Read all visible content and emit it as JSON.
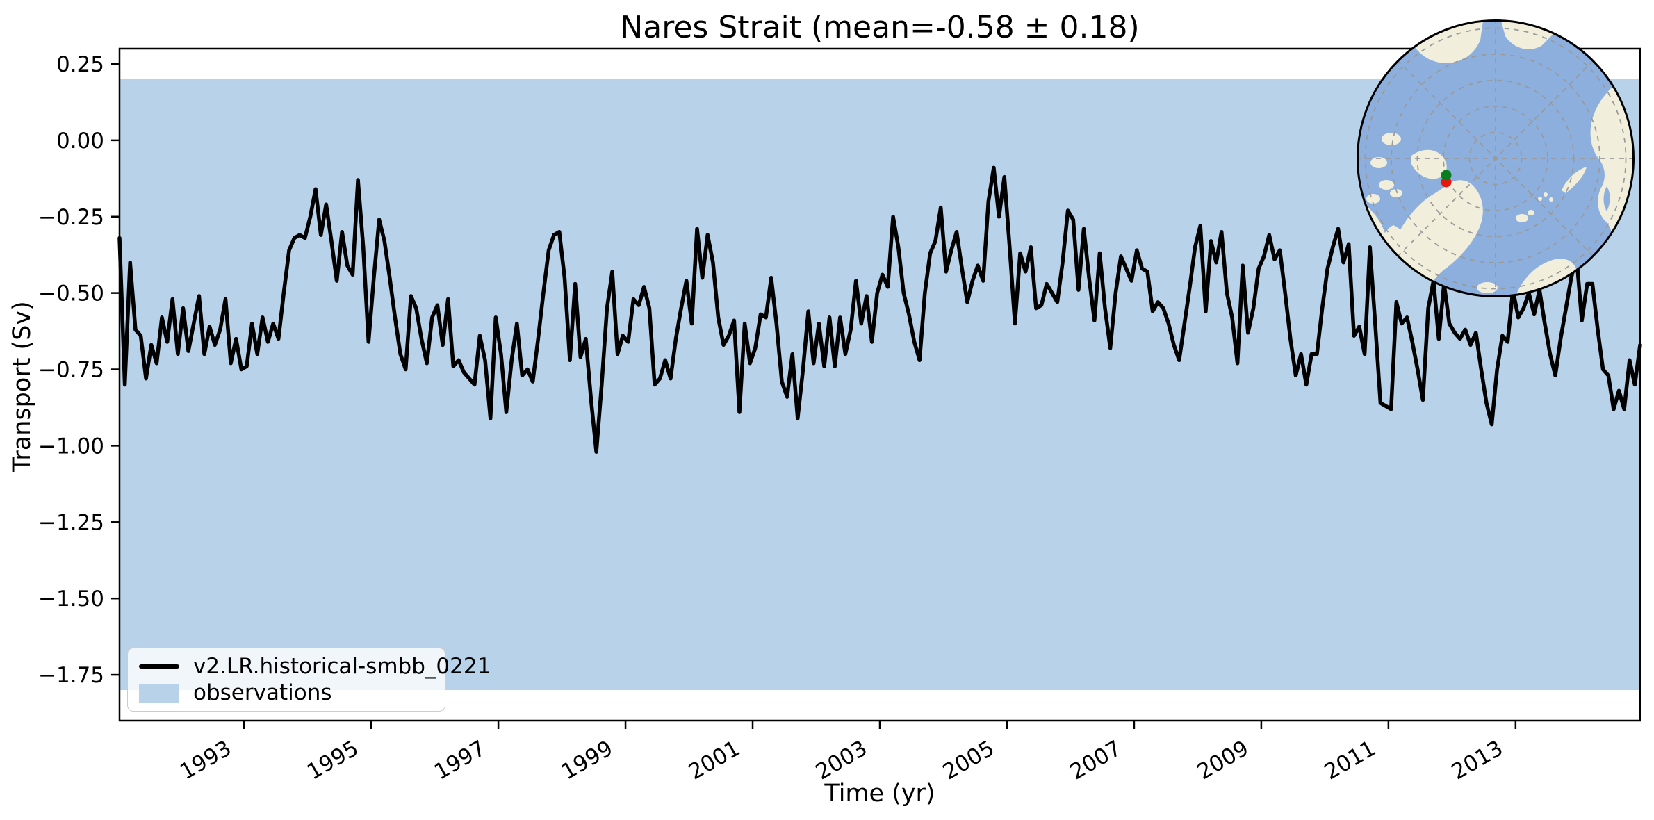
{
  "chart_data": {
    "type": "line",
    "title": "Nares Strait (mean=-0.58 ± 0.18)",
    "xlabel": "Time (yr)",
    "ylabel": "Transport (Sv)",
    "xlim": [
      1991.0417,
      2014.9583
    ],
    "ylim": [
      -1.9,
      0.3
    ],
    "grid": false,
    "legend_position": "lower-left",
    "xticks": [
      {
        "value": 1993,
        "label": "1993"
      },
      {
        "value": 1995,
        "label": "1995"
      },
      {
        "value": 1997,
        "label": "1997"
      },
      {
        "value": 1999,
        "label": "1999"
      },
      {
        "value": 2001,
        "label": "2001"
      },
      {
        "value": 2003,
        "label": "2003"
      },
      {
        "value": 2005,
        "label": "2005"
      },
      {
        "value": 2007,
        "label": "2007"
      },
      {
        "value": 2009,
        "label": "2009"
      },
      {
        "value": 2011,
        "label": "2011"
      },
      {
        "value": 2013,
        "label": "2013"
      }
    ],
    "yticks": [
      {
        "value": 0.25,
        "label": "0.25"
      },
      {
        "value": 0.0,
        "label": "0.00"
      },
      {
        "value": -0.25,
        "label": "−0.25"
      },
      {
        "value": -0.5,
        "label": "−0.50"
      },
      {
        "value": -0.75,
        "label": "−0.75"
      },
      {
        "value": -1.0,
        "label": "−1.00"
      },
      {
        "value": -1.25,
        "label": "−1.25"
      },
      {
        "value": -1.5,
        "label": "−1.50"
      },
      {
        "value": -1.75,
        "label": "−1.75"
      }
    ],
    "band": {
      "name": "observations",
      "color": "#b8d3e9",
      "y_min": -1.8,
      "y_max": 0.2,
      "mean": -0.8,
      "uncertainty": 1.0
    },
    "series": [
      {
        "name": "v2.LR.historical-smbb_0221",
        "color": "#000000",
        "line_width": 5.5,
        "start_year": 1991,
        "interval_months": 1,
        "mean": -0.58,
        "std": 0.18,
        "values": [
          -0.32,
          -0.8,
          -0.4,
          -0.62,
          -0.64,
          -0.78,
          -0.67,
          -0.73,
          -0.58,
          -0.66,
          -0.52,
          -0.7,
          -0.55,
          -0.69,
          -0.6,
          -0.51,
          -0.7,
          -0.61,
          -0.67,
          -0.62,
          -0.52,
          -0.73,
          -0.65,
          -0.75,
          -0.74,
          -0.6,
          -0.7,
          -0.58,
          -0.66,
          -0.6,
          -0.65,
          -0.5,
          -0.36,
          -0.32,
          -0.31,
          -0.32,
          -0.25,
          -0.16,
          -0.31,
          -0.21,
          -0.33,
          -0.46,
          -0.3,
          -0.41,
          -0.44,
          -0.13,
          -0.35,
          -0.66,
          -0.45,
          -0.26,
          -0.33,
          -0.45,
          -0.58,
          -0.7,
          -0.75,
          -0.51,
          -0.55,
          -0.65,
          -0.73,
          -0.58,
          -0.54,
          -0.67,
          -0.52,
          -0.74,
          -0.72,
          -0.76,
          -0.78,
          -0.8,
          -0.64,
          -0.72,
          -0.91,
          -0.58,
          -0.7,
          -0.89,
          -0.72,
          -0.6,
          -0.77,
          -0.75,
          -0.79,
          -0.65,
          -0.5,
          -0.36,
          -0.31,
          -0.3,
          -0.45,
          -0.72,
          -0.47,
          -0.71,
          -0.65,
          -0.85,
          -1.02,
          -0.8,
          -0.55,
          -0.43,
          -0.7,
          -0.64,
          -0.66,
          -0.52,
          -0.54,
          -0.48,
          -0.55,
          -0.8,
          -0.78,
          -0.72,
          -0.78,
          -0.65,
          -0.55,
          -0.46,
          -0.6,
          -0.29,
          -0.45,
          -0.31,
          -0.4,
          -0.58,
          -0.67,
          -0.64,
          -0.59,
          -0.89,
          -0.6,
          -0.73,
          -0.68,
          -0.57,
          -0.58,
          -0.45,
          -0.6,
          -0.79,
          -0.84,
          -0.7,
          -0.91,
          -0.75,
          -0.56,
          -0.73,
          -0.6,
          -0.74,
          -0.58,
          -0.74,
          -0.58,
          -0.7,
          -0.62,
          -0.46,
          -0.6,
          -0.51,
          -0.66,
          -0.5,
          -0.44,
          -0.48,
          -0.25,
          -0.35,
          -0.5,
          -0.57,
          -0.66,
          -0.72,
          -0.5,
          -0.37,
          -0.33,
          -0.22,
          -0.43,
          -0.36,
          -0.3,
          -0.42,
          -0.53,
          -0.46,
          -0.41,
          -0.46,
          -0.2,
          -0.09,
          -0.25,
          -0.12,
          -0.35,
          -0.6,
          -0.37,
          -0.43,
          -0.35,
          -0.55,
          -0.54,
          -0.47,
          -0.5,
          -0.53,
          -0.4,
          -0.23,
          -0.26,
          -0.49,
          -0.29,
          -0.45,
          -0.59,
          -0.37,
          -0.55,
          -0.68,
          -0.5,
          -0.38,
          -0.42,
          -0.46,
          -0.36,
          -0.42,
          -0.43,
          -0.56,
          -0.53,
          -0.55,
          -0.6,
          -0.67,
          -0.72,
          -0.6,
          -0.48,
          -0.35,
          -0.28,
          -0.56,
          -0.33,
          -0.4,
          -0.3,
          -0.5,
          -0.58,
          -0.73,
          -0.41,
          -0.63,
          -0.55,
          -0.42,
          -0.38,
          -0.31,
          -0.39,
          -0.36,
          -0.5,
          -0.65,
          -0.77,
          -0.7,
          -0.8,
          -0.7,
          -0.7,
          -0.55,
          -0.42,
          -0.35,
          -0.29,
          -0.4,
          -0.34,
          -0.64,
          -0.61,
          -0.7,
          -0.35,
          -0.6,
          -0.86,
          -0.87,
          -0.88,
          -0.53,
          -0.6,
          -0.58,
          -0.66,
          -0.75,
          -0.85,
          -0.55,
          -0.46,
          -0.65,
          -0.47,
          -0.6,
          -0.63,
          -0.65,
          -0.62,
          -0.67,
          -0.63,
          -0.75,
          -0.86,
          -0.93,
          -0.75,
          -0.64,
          -0.66,
          -0.49,
          -0.58,
          -0.55,
          -0.5,
          -0.57,
          -0.49,
          -0.6,
          -0.7,
          -0.77,
          -0.65,
          -0.55,
          -0.45,
          -0.38,
          -0.59,
          -0.47,
          -0.47,
          -0.62,
          -0.75,
          -0.77,
          -0.88,
          -0.82,
          -0.88,
          -0.72,
          -0.8,
          -0.67
        ]
      }
    ]
  },
  "legend": {
    "items": [
      {
        "label": "v2.LR.historical-smbb_0221",
        "swatch": "line"
      },
      {
        "label": "observations",
        "swatch": "patch"
      }
    ]
  },
  "inset_map": {
    "name": "arctic-polar-inset",
    "ocean_color": "#8cafdd",
    "land_color": "#f1efdc",
    "graticule_color": "#9a9a9a",
    "marker_green": "#0a7d1f",
    "marker_red": "#e8160c"
  }
}
